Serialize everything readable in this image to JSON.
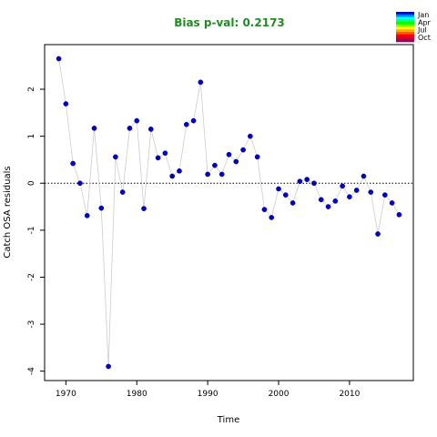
{
  "chart_data": {
    "type": "scatter",
    "title": "Bias p-val: 0.2173",
    "title_color": "#228B22",
    "xlabel": "Time",
    "ylabel": "Catch OSA residuals",
    "xlim": [
      1967,
      2019
    ],
    "ylim": [
      -4.2,
      2.95
    ],
    "xticks": [
      1970,
      1980,
      1990,
      2000,
      2010
    ],
    "yticks": [
      -4,
      -3,
      -2,
      -1,
      0,
      1,
      2
    ],
    "reference_line": 0,
    "point_color": "#0000CD",
    "line_color": "#cccccc",
    "grid": false,
    "legend": {
      "placement": "top-right",
      "labels": [
        "Jan",
        "Apr",
        "Jul",
        "Oct"
      ],
      "colors": [
        "#0000ff",
        "#0080ff",
        "#00ffff",
        "#00ff80",
        "#00ff00",
        "#80ff00",
        "#ffff00",
        "#ffaa00",
        "#ff5500",
        "#ff0000",
        "#cc0033",
        "#990066"
      ]
    },
    "points": [
      {
        "x": 1969,
        "y": 2.65
      },
      {
        "x": 1970,
        "y": 1.69
      },
      {
        "x": 1971,
        "y": 0.42
      },
      {
        "x": 1972,
        "y": 0.0
      },
      {
        "x": 1973,
        "y": -0.69
      },
      {
        "x": 1974,
        "y": 1.17
      },
      {
        "x": 1975,
        "y": -0.53
      },
      {
        "x": 1976,
        "y": -3.9
      },
      {
        "x": 1977,
        "y": 0.56
      },
      {
        "x": 1978,
        "y": -0.19
      },
      {
        "x": 1979,
        "y": 1.17
      },
      {
        "x": 1980,
        "y": 1.33
      },
      {
        "x": 1981,
        "y": -0.54
      },
      {
        "x": 1982,
        "y": 1.15
      },
      {
        "x": 1983,
        "y": 0.54
      },
      {
        "x": 1984,
        "y": 0.64
      },
      {
        "x": 1985,
        "y": 0.15
      },
      {
        "x": 1986,
        "y": 0.26
      },
      {
        "x": 1987,
        "y": 1.25
      },
      {
        "x": 1988,
        "y": 1.33
      },
      {
        "x": 1989,
        "y": 2.15
      },
      {
        "x": 1990,
        "y": 0.19
      },
      {
        "x": 1991,
        "y": 0.38
      },
      {
        "x": 1992,
        "y": 0.19
      },
      {
        "x": 1993,
        "y": 0.61
      },
      {
        "x": 1994,
        "y": 0.46
      },
      {
        "x": 1995,
        "y": 0.71
      },
      {
        "x": 1996,
        "y": 1.0
      },
      {
        "x": 1997,
        "y": 0.56
      },
      {
        "x": 1998,
        "y": -0.56
      },
      {
        "x": 1999,
        "y": -0.73
      },
      {
        "x": 2000,
        "y": -0.12
      },
      {
        "x": 2001,
        "y": -0.25
      },
      {
        "x": 2002,
        "y": -0.42
      },
      {
        "x": 2003,
        "y": 0.04
      },
      {
        "x": 2004,
        "y": 0.08
      },
      {
        "x": 2005,
        "y": 0.0
      },
      {
        "x": 2006,
        "y": -0.35
      },
      {
        "x": 2007,
        "y": -0.5
      },
      {
        "x": 2008,
        "y": -0.38
      },
      {
        "x": 2009,
        "y": -0.06
      },
      {
        "x": 2010,
        "y": -0.29
      },
      {
        "x": 2011,
        "y": -0.15
      },
      {
        "x": 2012,
        "y": 0.15
      },
      {
        "x": 2013,
        "y": -0.19
      },
      {
        "x": 2014,
        "y": -1.08
      },
      {
        "x": 2015,
        "y": -0.25
      },
      {
        "x": 2016,
        "y": -0.42
      },
      {
        "x": 2017,
        "y": -0.67
      }
    ]
  }
}
